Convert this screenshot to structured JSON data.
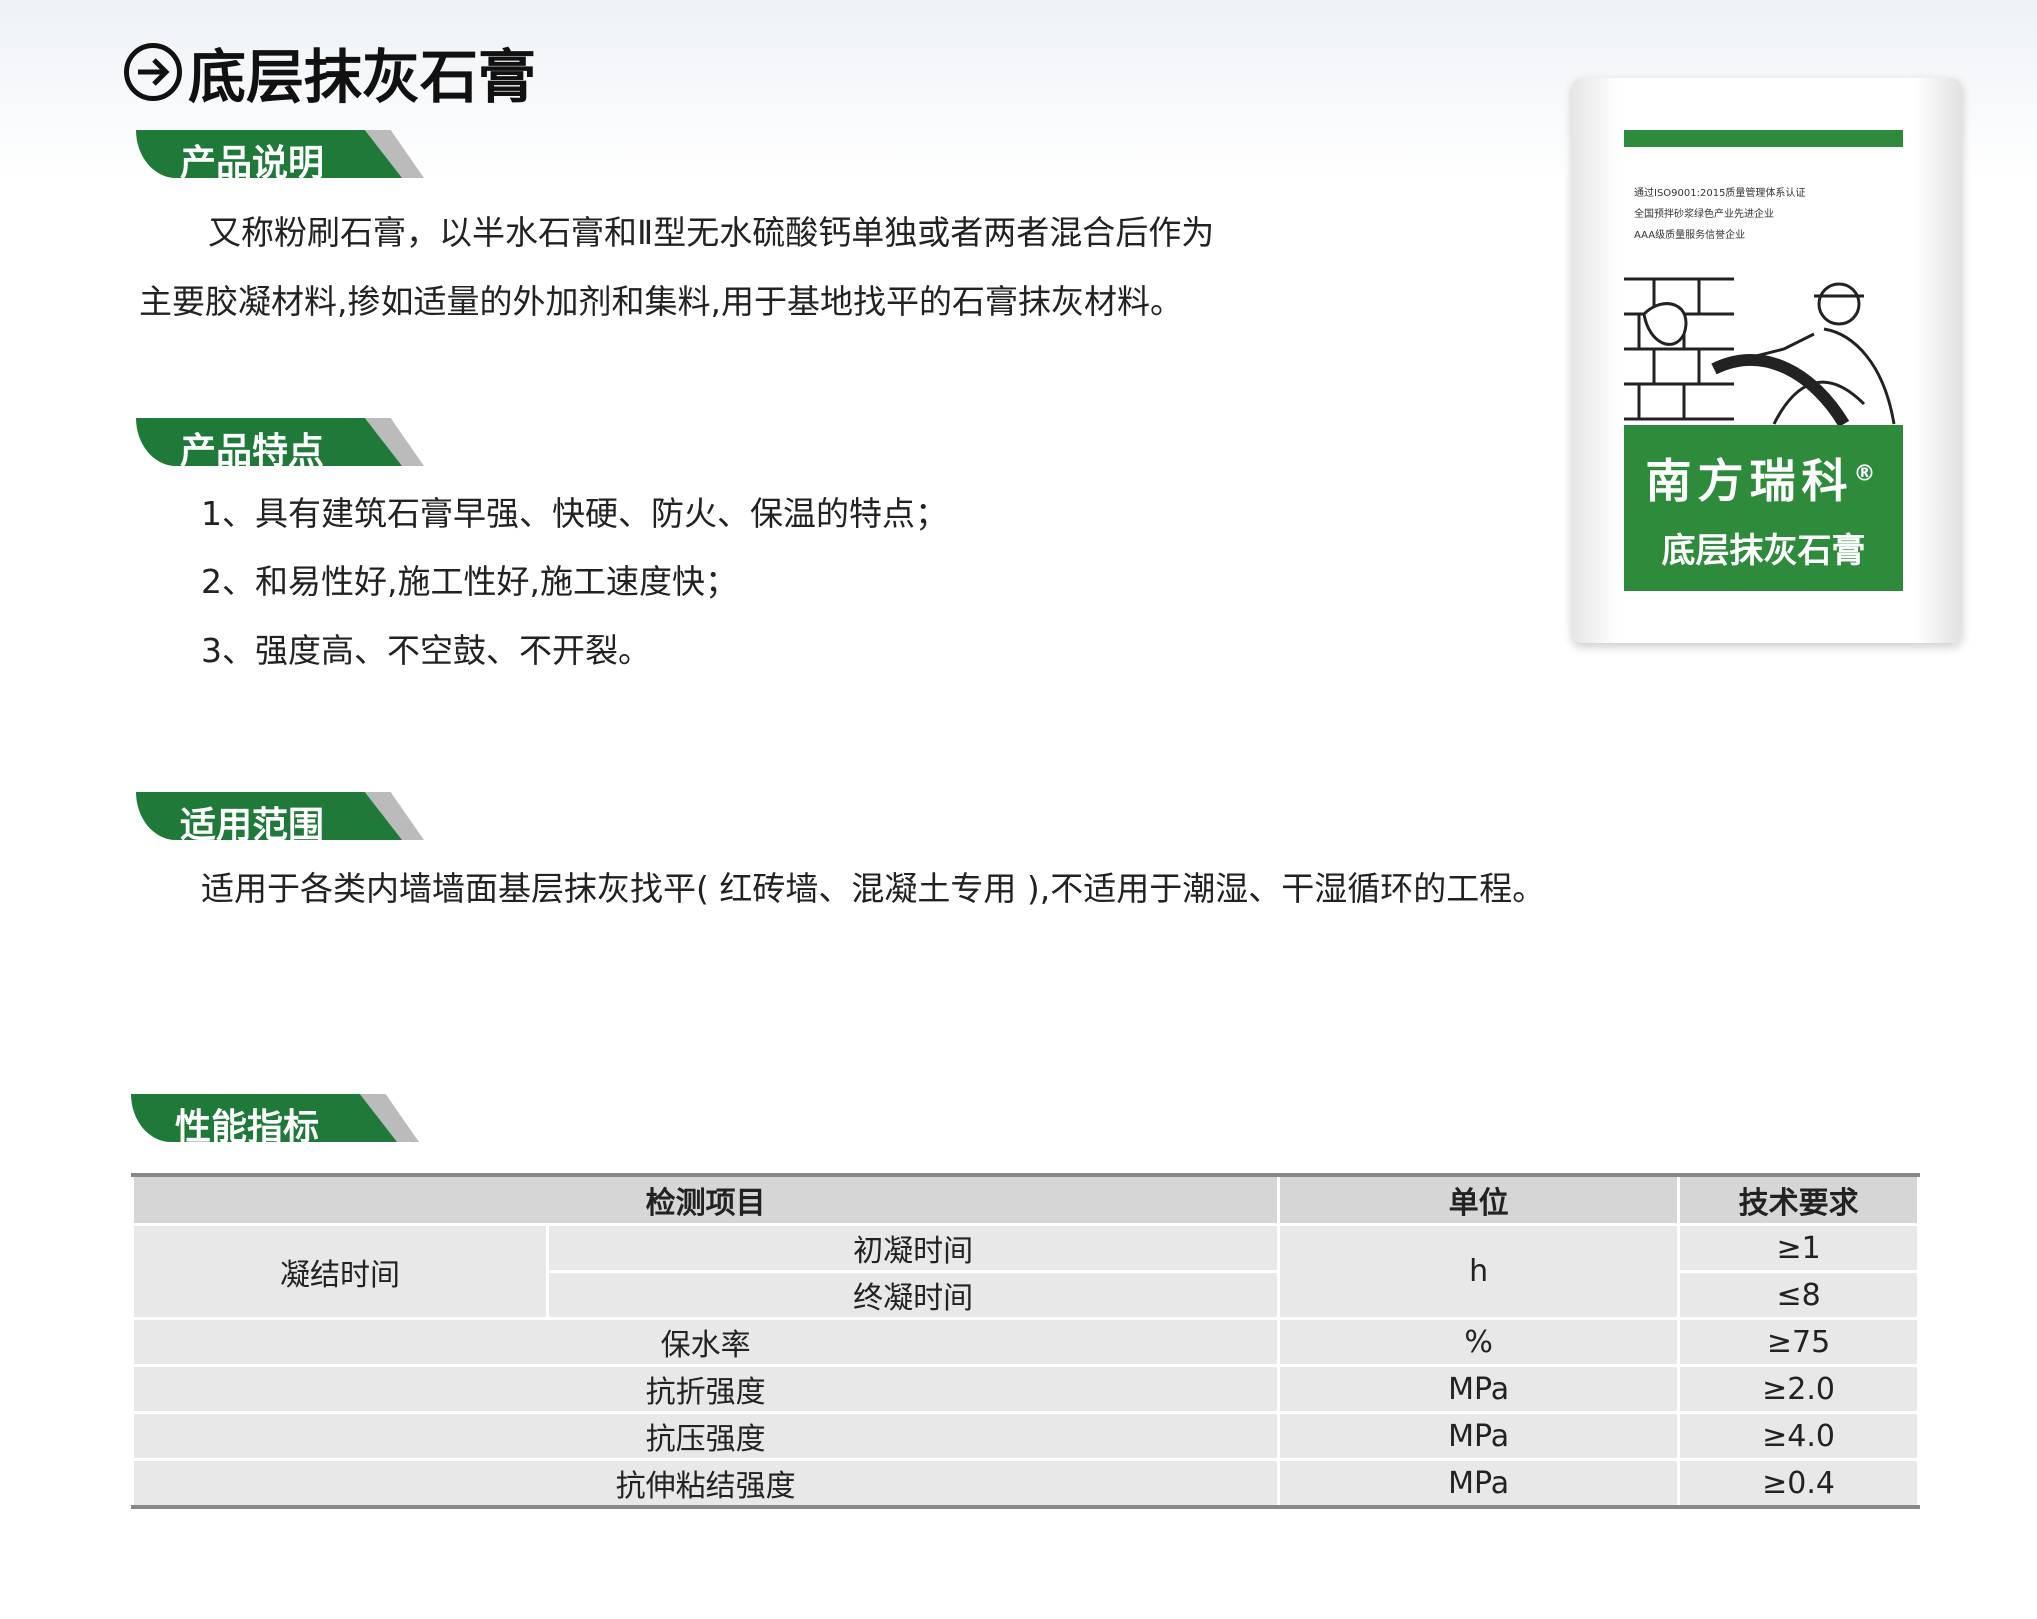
{
  "title": "底层抹灰石膏",
  "sections": {
    "description": {
      "label": "产品说明",
      "lines": [
        "又称粉刷石膏，以半水石膏和Ⅱ型无水硫酸钙单独或者两者混合后作为",
        "主要胶凝材料,掺如适量的外加剂和集料,用于基地找平的石膏抹灰材料。"
      ]
    },
    "features": {
      "label": "产品特点",
      "items": [
        "1、具有建筑石膏早强、快硬、防火、保温的特点；",
        "2、和易性好,施工性好,施工速度快；",
        "3、强度高、不空鼓、不开裂。"
      ]
    },
    "scope": {
      "label": "适用范围",
      "text": "适用于各类内墙墙面基层抹灰找平( 红砖墙、混凝土专用 ),不适用于潮湿、干湿循环的工程。"
    },
    "performance": {
      "label": "性能指标"
    }
  },
  "table": {
    "headers": [
      "检测项目",
      "单位",
      "技术要求"
    ],
    "group": "凝结时间",
    "sub": [
      "初凝时间",
      "终凝时间"
    ],
    "group_unit": "h",
    "sub_req": [
      "≥1",
      "≤8"
    ],
    "rows": [
      [
        "保水率",
        "%",
        "≥75"
      ],
      [
        "抗折强度",
        "MPa",
        "≥2.0"
      ],
      [
        "抗压强度",
        "MPa",
        "≥4.0"
      ],
      [
        "抗伸粘结强度",
        "MPa",
        "≥0.4"
      ]
    ]
  },
  "bag": {
    "certs": [
      "通过ISO9001:2015质量管理体系认证",
      "全国预拌砂浆绿色产业先进企业",
      "AAA级质量服务信誉企业"
    ],
    "brand": "南方瑞科",
    "registered": "®",
    "product": "底层抹灰石膏"
  },
  "colors": {
    "green": "#1f7a3a",
    "table_header": "#d6d6d6",
    "table_cell": "#e8e8e8"
  }
}
